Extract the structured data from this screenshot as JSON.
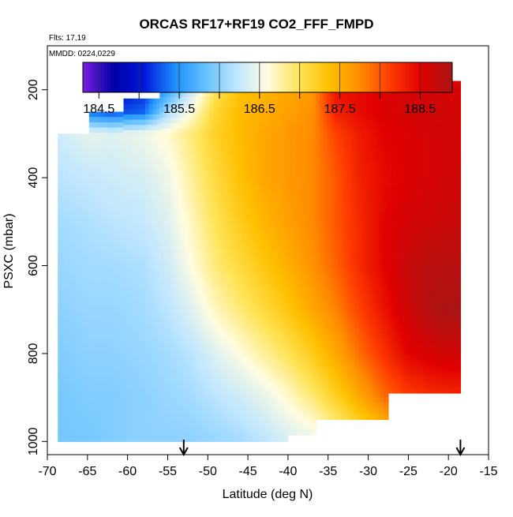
{
  "chart_data": {
    "type": "heatmap",
    "title": "ORCAS RF17+RF19 CO2_FFF_FMPD",
    "subtitle_flights": "Flts: 17,19",
    "subtitle_dates": "MMDD: 0224,0229",
    "xlabel": "Latitude (deg N)",
    "ylabel": "PSXC (mbar)",
    "xlim": [
      -70,
      -15
    ],
    "ylim": [
      1030,
      100
    ],
    "x_ticks": [
      -70,
      -65,
      -60,
      -55,
      -50,
      -45,
      -40,
      -35,
      -30,
      -25,
      -20,
      -15
    ],
    "y_ticks": [
      200,
      400,
      600,
      800,
      1000
    ],
    "colorbar": {
      "range": [
        184.3,
        188.9
      ],
      "tick_values": [
        184.5,
        185.5,
        186.5,
        187.5,
        188.5
      ],
      "tick_labels": [
        "184.5",
        "185.5",
        "186.5",
        "187.5",
        "188.5"
      ],
      "colors": [
        "#7b1fe0",
        "#0000a8",
        "#0018d8",
        "#1e90ff",
        "#66c2ff",
        "#bfe6ff",
        "#fffce0",
        "#ffe45a",
        "#ffc000",
        "#ff8c00",
        "#ff3a00",
        "#e00000",
        "#aa1515"
      ]
    },
    "arrows_latitude": [
      -53,
      -18.5
    ],
    "columns": [
      {
        "lat_left": -68.7,
        "lat_right": -64.8,
        "p_top": 300,
        "p_bottom": 1000
      },
      {
        "lat_left": -64.8,
        "lat_right": -60.5,
        "p_top": 250,
        "p_bottom": 1000
      },
      {
        "lat_left": -60.5,
        "lat_right": -56.0,
        "p_top": 220,
        "p_bottom": 1000
      },
      {
        "lat_left": -56.0,
        "lat_right": -52.0,
        "p_top": 180,
        "p_bottom": 1000
      },
      {
        "lat_left": -52.0,
        "lat_right": -48.0,
        "p_top": 180,
        "p_bottom": 1000
      },
      {
        "lat_left": -48.0,
        "lat_right": -44.0,
        "p_top": 180,
        "p_bottom": 1000
      },
      {
        "lat_left": -44.0,
        "lat_right": -40.0,
        "p_top": 180,
        "p_bottom": 1000
      },
      {
        "lat_left": -40.0,
        "lat_right": -36.5,
        "p_top": 180,
        "p_bottom": 985
      },
      {
        "lat_left": -36.5,
        "lat_right": -33.0,
        "p_top": 180,
        "p_bottom": 950
      },
      {
        "lat_left": -33.0,
        "lat_right": -27.5,
        "p_top": 180,
        "p_bottom": 950
      },
      {
        "lat_left": -27.5,
        "lat_right": -23.0,
        "p_top": 180,
        "p_bottom": 890
      },
      {
        "lat_left": -23.0,
        "lat_right": -18.5,
        "p_top": 180,
        "p_bottom": 890
      }
    ],
    "profiles": [
      {
        "lat": -68.5,
        "p": [
          1000,
          900,
          800,
          700,
          600,
          500,
          400,
          300
        ],
        "v": [
          185.9,
          185.9,
          185.95,
          186.0,
          186.05,
          186.1,
          186.2,
          186.3
        ]
      },
      {
        "lat": -64.8,
        "p": [
          1000,
          900,
          800,
          700,
          600,
          500,
          400,
          300,
          250
        ],
        "v": [
          185.9,
          185.95,
          186.0,
          186.05,
          186.1,
          186.15,
          186.25,
          186.45,
          185.3
        ]
      },
      {
        "lat": -62.0,
        "p": [
          1000,
          900,
          800,
          700,
          600,
          500,
          400,
          300,
          250,
          200,
          185
        ],
        "v": [
          185.95,
          185.95,
          186.0,
          186.05,
          186.1,
          186.2,
          186.3,
          186.4,
          185.2,
          184.9,
          184.4
        ]
      },
      {
        "lat": -58.0,
        "p": [
          1000,
          900,
          800,
          700,
          600,
          500,
          400,
          300,
          250,
          200,
          185
        ],
        "v": [
          186.0,
          186.0,
          186.05,
          186.1,
          186.15,
          186.25,
          186.35,
          186.5,
          185.3,
          185.1,
          184.9
        ]
      },
      {
        "lat": -55.0,
        "p": [
          1000,
          900,
          800,
          700,
          600,
          500,
          400,
          300,
          250,
          200,
          185
        ],
        "v": [
          186.0,
          186.05,
          186.1,
          186.2,
          186.3,
          186.4,
          186.5,
          186.65,
          186.1,
          185.6,
          185.6
        ]
      },
      {
        "lat": -52.0,
        "p": [
          1000,
          900,
          800,
          700,
          600,
          500,
          400,
          300,
          250,
          200,
          185
        ],
        "v": [
          186.0,
          186.1,
          186.2,
          186.4,
          186.6,
          186.7,
          186.8,
          186.9,
          186.6,
          186.3,
          185.6
        ]
      },
      {
        "lat": -49.0,
        "p": [
          1000,
          900,
          800,
          700,
          600,
          500,
          400,
          300,
          250,
          200,
          185
        ],
        "v": [
          186.05,
          186.2,
          186.4,
          186.7,
          186.9,
          187.0,
          187.1,
          187.2,
          187.15,
          187.0,
          186.9
        ]
      },
      {
        "lat": -46.0,
        "p": [
          1000,
          900,
          800,
          700,
          600,
          500,
          400,
          300,
          250,
          200,
          185
        ],
        "v": [
          186.1,
          186.3,
          186.6,
          186.9,
          187.1,
          187.25,
          187.35,
          187.4,
          187.4,
          187.35,
          187.3
        ]
      },
      {
        "lat": -43.0,
        "p": [
          1000,
          900,
          800,
          700,
          600,
          500,
          400,
          300,
          250,
          200,
          185
        ],
        "v": [
          186.2,
          186.45,
          186.8,
          187.1,
          187.3,
          187.45,
          187.55,
          187.55,
          187.5,
          187.45,
          187.4
        ]
      },
      {
        "lat": -40.0,
        "p": [
          1000,
          900,
          800,
          700,
          600,
          500,
          400,
          300,
          250,
          200,
          185
        ],
        "v": [
          186.35,
          186.65,
          187.0,
          187.3,
          187.5,
          187.6,
          187.65,
          187.65,
          187.6,
          187.55,
          187.5
        ]
      },
      {
        "lat": -37.0,
        "p": [
          985,
          900,
          800,
          700,
          600,
          500,
          400,
          300,
          250,
          200,
          185
        ],
        "v": [
          186.5,
          186.9,
          187.25,
          187.55,
          187.7,
          187.75,
          187.75,
          187.75,
          187.7,
          187.65,
          187.6
        ]
      },
      {
        "lat": -34.0,
        "p": [
          950,
          900,
          800,
          700,
          600,
          500,
          400,
          300,
          250,
          200,
          185
        ],
        "v": [
          186.95,
          187.2,
          187.55,
          187.8,
          187.95,
          188.0,
          188.0,
          188.1,
          188.3,
          188.4,
          188.45
        ]
      },
      {
        "lat": -31.0,
        "p": [
          950,
          900,
          800,
          700,
          600,
          500,
          400,
          300,
          250,
          200,
          185
        ],
        "v": [
          187.25,
          187.55,
          187.9,
          188.1,
          188.25,
          188.25,
          188.3,
          188.35,
          188.45,
          188.45,
          188.45
        ]
      },
      {
        "lat": -28.0,
        "p": [
          950,
          900,
          800,
          700,
          600,
          500,
          400,
          300,
          250,
          200,
          185
        ],
        "v": [
          187.55,
          187.9,
          188.2,
          188.4,
          188.5,
          188.5,
          188.45,
          188.5,
          188.55,
          188.55,
          188.5
        ]
      },
      {
        "lat": -25.0,
        "p": [
          890,
          800,
          700,
          600,
          500,
          400,
          300,
          250,
          200,
          185
        ],
        "v": [
          188.15,
          188.5,
          188.65,
          188.7,
          188.6,
          188.55,
          188.55,
          188.6,
          188.6,
          188.55
        ]
      },
      {
        "lat": -22.0,
        "p": [
          890,
          800,
          700,
          600,
          500,
          400,
          300,
          250,
          200,
          185
        ],
        "v": [
          188.25,
          188.6,
          188.85,
          188.8,
          188.65,
          188.6,
          188.6,
          188.65,
          188.6,
          188.55
        ]
      },
      {
        "lat": -18.5,
        "p": [
          890,
          800,
          700,
          600,
          500,
          400,
          300,
          250,
          200,
          185
        ],
        "v": [
          188.3,
          188.65,
          188.9,
          188.8,
          188.7,
          188.65,
          188.6,
          188.6,
          188.6,
          188.55
        ]
      }
    ]
  }
}
